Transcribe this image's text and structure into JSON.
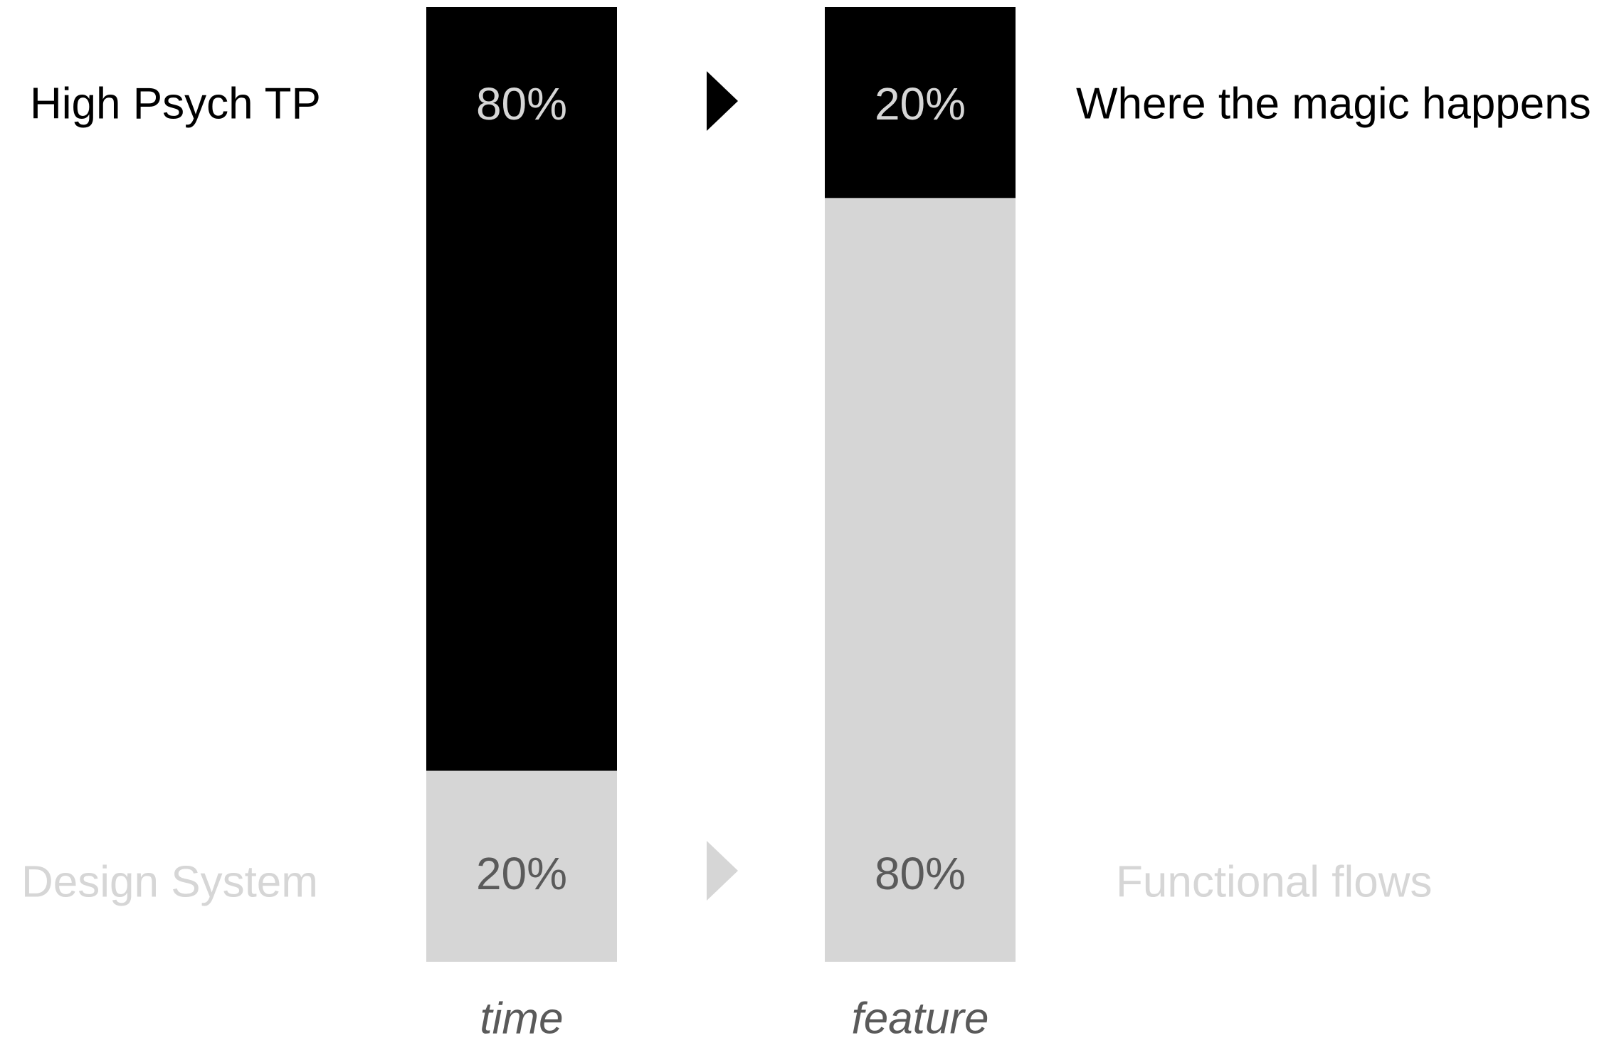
{
  "chart_data": {
    "type": "bar",
    "stacked": true,
    "normalized": true,
    "categories": [
      "time",
      "feature"
    ],
    "series": [
      {
        "labels": [
          "High Psych TP",
          "Where the magic happens"
        ],
        "values": [
          80,
          20
        ],
        "value_labels": [
          "80%",
          "20%"
        ],
        "color": "#000000",
        "label_color": "#000000",
        "value_label_color": "#d6d6d6"
      },
      {
        "labels": [
          "Design System",
          "Functional flows"
        ],
        "values": [
          20,
          80
        ],
        "value_labels": [
          "20%",
          "80%"
        ],
        "color": "#d6d6d6",
        "label_color": "#d6d6d6",
        "value_label_color": "#5a5a5a"
      }
    ],
    "ylim": [
      0,
      100
    ],
    "axis_label_color": "#5a5a5a",
    "arrow_icon": "triangle-right-icon",
    "grid": false,
    "legend": "none"
  }
}
